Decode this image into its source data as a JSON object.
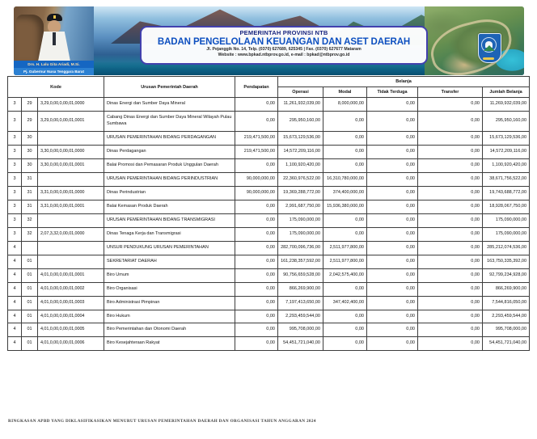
{
  "banner": {
    "governor": {
      "name": "Drs. H. Lalu Gita Ariadi, M.Si.",
      "title": "Pj. Gubernur Nusa Tenggara Barat"
    },
    "letterhead": {
      "government": "PEMERINTAH PROVINSI NTB",
      "agency": "BADAN PENGELOLAAN KEUANGAN DAN ASET DAERAH",
      "address": "Jl. Pejanggik No. 14, Telp. (0370) 627689, 625345 | Fax. (0370) 627677 Mataram",
      "website": "Website : www.bpkad.ntbprov.go.id, e-mail : bpkad@ntbprov.go.id"
    }
  },
  "colors": {
    "agency_blue": "#0d4fc0",
    "government_navy": "#19257f",
    "caption_bar_blue": "#1566c2",
    "letterhead_border_purple": "#4240ae",
    "table_border": "#3d3d3d",
    "emblem_blue": "#1e63b5"
  },
  "table": {
    "header": {
      "kode": "Kode",
      "urusan": "Urusan Pemerintah Daerah",
      "pendapatan": "Pendapatan",
      "belanja": "Belanja",
      "sub": [
        "Operasi",
        "Modal",
        "Tidak Terduga",
        "Transfer",
        "Jumlah Belanja"
      ]
    },
    "rows": [
      [
        "3",
        "29",
        "3,29,0,00,0,00,01,0000",
        "Dinas Energi dan Sumber Daya Mineral",
        "0,00",
        "11,261,932,039,00",
        "8,000,000,00",
        "0,00",
        "0,00",
        "11,269,932,039,00"
      ],
      [
        "3",
        "29",
        "3,29,0,00,0,00,01,0001",
        "Cabang Dinas Energi dan Sumber Daya Mineral Wilayah Pulau Sumbawa",
        "0,00",
        "295,950,160,00",
        "0,00",
        "0,00",
        "0,00",
        "295,950,160,00"
      ],
      [
        "3",
        "30",
        "",
        "URUSAN PEMERINTAHAN BIDANG PERDAGANGAN",
        "219,471,500,00",
        "15,673,129,536,00",
        "0,00",
        "0,00",
        "0,00",
        "15,673,129,536,00"
      ],
      [
        "3",
        "30",
        "3,30,0,00,0,00,01,0000",
        "Dinas Perdagangan",
        "219,471,500,00",
        "14,572,209,116,00",
        "0,00",
        "0,00",
        "0,00",
        "14,572,209,116,00"
      ],
      [
        "3",
        "30",
        "3,30,0,00,0,00,01,0001",
        "Balai Promosi dan Pemasaran Produk Unggulan Daerah",
        "0,00",
        "1,100,920,420,00",
        "0,00",
        "0,00",
        "0,00",
        "1,100,920,420,00"
      ],
      [
        "3",
        "31",
        "",
        "URUSAN PEMERINTAHAN BIDANG PERINDUSTRIAN",
        "90,000,000,00",
        "22,360,976,522,00",
        "16,310,780,000,00",
        "0,00",
        "0,00",
        "38,671,756,522,00"
      ],
      [
        "3",
        "31",
        "3,31,0,00,0,00,01,0000",
        "Dinas Perindustrian",
        "90,000,000,00",
        "19,369,288,772,00",
        "374,400,000,00",
        "0,00",
        "0,00",
        "19,743,688,772,00"
      ],
      [
        "3",
        "31",
        "3,31,0,00,0,00,01,0001",
        "Balai Kemasan Produk Daerah",
        "0,00",
        "2,991,687,750,00",
        "15,936,380,000,00",
        "0,00",
        "0,00",
        "18,928,067,750,00"
      ],
      [
        "3",
        "32",
        "",
        "URUSAN PEMERINTAHAN BIDANG TRANSMIGRASI",
        "0,00",
        "175,090,000,00",
        "0,00",
        "0,00",
        "0,00",
        "175,090,000,00"
      ],
      [
        "3",
        "32",
        "2,07,3,32,0,00,01,0000",
        "Dinas Tenaga Kerja dan Transmigrasi",
        "0,00",
        "175,090,000,00",
        "0,00",
        "0,00",
        "0,00",
        "175,090,000,00"
      ],
      [
        "4",
        "",
        "",
        "UNSUR PENDUKUNG URUSAN PEMERINTAHAN",
        "0,00",
        "282,700,096,736,00",
        "2,511,977,800,00",
        "0,00",
        "0,00",
        "285,212,074,536,00"
      ],
      [
        "4",
        "01",
        "",
        "SEKRETARIAT DAERAH",
        "0,00",
        "161,238,357,592,00",
        "2,511,977,800,00",
        "0,00",
        "0,00",
        "163,750,335,392,00"
      ],
      [
        "4",
        "01",
        "4,01,0,00,0,00,01,0001",
        "Biro Umum",
        "0,00",
        "90,756,659,528,00",
        "2,042,575,400,00",
        "0,00",
        "0,00",
        "92,799,234,928,00"
      ],
      [
        "4",
        "01",
        "4,01,0,00,0,00,01,0002",
        "Biro Organisasi",
        "0,00",
        "866,269,900,00",
        "0,00",
        "0,00",
        "0,00",
        "866,269,900,00"
      ],
      [
        "4",
        "01",
        "4,01,0,00,0,00,01,0003",
        "Biro Administrasi Pimpinan",
        "0,00",
        "7,197,413,650,00",
        "347,402,400,00",
        "0,00",
        "0,00",
        "7,544,816,050,00"
      ],
      [
        "4",
        "01",
        "4,01,0,00,0,00,01,0004",
        "Biro Hukum",
        "0,00",
        "2,293,459,544,00",
        "0,00",
        "0,00",
        "0,00",
        "2,293,459,544,00"
      ],
      [
        "4",
        "01",
        "4,01,0,00,0,00,01,0005",
        "Biro Pemerintahan dan Otonomi Daerah",
        "0,00",
        "995,708,000,00",
        "0,00",
        "0,00",
        "0,00",
        "995,708,000,00"
      ],
      [
        "4",
        "01",
        "4,01,0,00,0,00,01,0006",
        "Biro Kesejahteraan Rakyat",
        "0,00",
        "54,451,721,040,00",
        "0,00",
        "0,00",
        "0,00",
        "54,451,721,040,00"
      ]
    ]
  },
  "footer": {
    "caption": "RINGKASAN APBD YANG DIKLASIFIKASIKAN MENURUT URUSAN PEMERINTAHAN DAERAH DAN ORGANISASI TAHUN ANGGARAN 2024"
  }
}
